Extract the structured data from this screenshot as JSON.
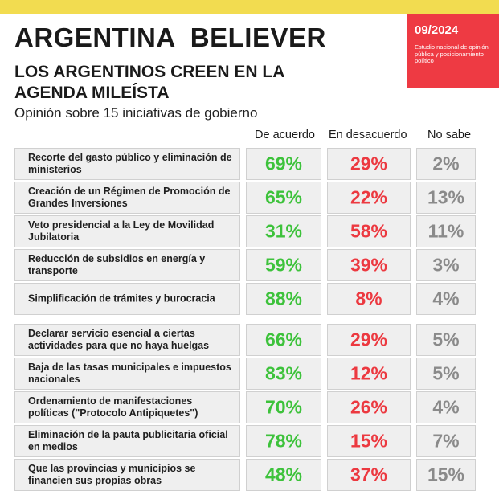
{
  "header": {
    "title": "ARGENTINA  BELIEVER",
    "subtitle": "LOS ARGENTINOS CREEN EN LA AGENDA MILEÍSTA",
    "description": "Opinión sobre 15 iniciativas de gobierno"
  },
  "badge": {
    "date": "09/2024",
    "text": "Estudio nacional de opinión pública y posicionamiento político"
  },
  "colors": {
    "top_bar": "#f2dc50",
    "badge": "#ee3a43",
    "agree": "#3dc23b",
    "disagree": "#ec3940",
    "unsure": "#8a8a8a"
  },
  "columns": {
    "agree": "De acuerdo",
    "disagree": "En desacuerdo",
    "unsure": "No sabe"
  },
  "groups": [
    {
      "rows": [
        {
          "label": "Recorte del gasto público y eliminación de ministerios",
          "agree": "69%",
          "disagree": "29%",
          "unsure": "2%"
        },
        {
          "label": "Creación de un Régimen de Promoción de Grandes Inversiones",
          "agree": "65%",
          "disagree": "22%",
          "unsure": "13%"
        },
        {
          "label": "Veto presidencial a la Ley de Movilidad Jubilatoria",
          "agree": "31%",
          "disagree": "58%",
          "unsure": "11%"
        },
        {
          "label": "Reducción de subsidios en energía y transporte",
          "agree": "59%",
          "disagree": "39%",
          "unsure": "3%"
        },
        {
          "label": "Simplificación de trámites y burocracia",
          "agree": "88%",
          "disagree": "8%",
          "unsure": "4%"
        }
      ]
    },
    {
      "rows": [
        {
          "label": "Declarar servicio esencial a ciertas actividades para que no haya huelgas",
          "agree": "66%",
          "disagree": "29%",
          "unsure": "5%"
        },
        {
          "label": "Baja de las tasas municipales e impuestos nacionales",
          "agree": "83%",
          "disagree": "12%",
          "unsure": "5%"
        },
        {
          "label": "Ordenamiento de manifestaciones políticas (\"Protocolo Antipiquetes\")",
          "agree": "70%",
          "disagree": "26%",
          "unsure": "4%"
        },
        {
          "label": "Eliminación de la pauta publicitaria oficial en medios",
          "agree": "78%",
          "disagree": "15%",
          "unsure": "7%"
        },
        {
          "label": "Que las provincias y municipios se financien sus propias obras",
          "agree": "48%",
          "disagree": "37%",
          "unsure": "15%"
        }
      ]
    }
  ]
}
